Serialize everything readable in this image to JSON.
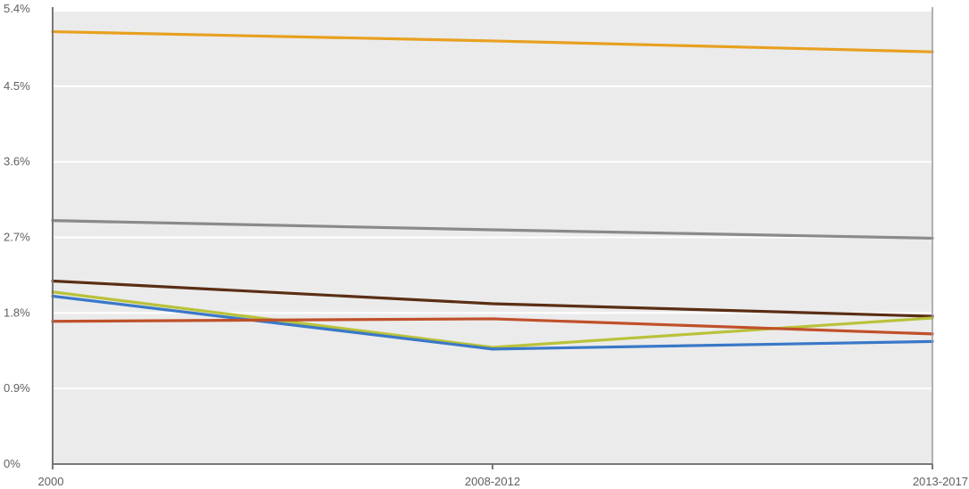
{
  "chart_data": {
    "type": "line",
    "title": "",
    "xlabel": "",
    "ylabel": "",
    "categories": [
      "2000",
      "2008-2012",
      "2013-2017"
    ],
    "ylim": [
      0,
      5.4
    ],
    "y_ticks": [
      "0%",
      "0.9%",
      "1.8%",
      "2.7%",
      "3.6%",
      "4.5%",
      "5.4%"
    ],
    "y_tick_values": [
      0,
      0.9,
      1.8,
      2.7,
      3.6,
      4.5,
      5.4
    ],
    "grid": true,
    "legend": "none",
    "series": [
      {
        "color": "#e8a020",
        "values": [
          5.15,
          5.04,
          4.91
        ]
      },
      {
        "color": "#8a8a8a",
        "values": [
          2.9,
          2.79,
          2.69
        ]
      },
      {
        "color": "#5a2e14",
        "values": [
          2.18,
          1.91,
          1.76
        ]
      },
      {
        "color": "#b9c23a",
        "values": [
          2.05,
          1.39,
          1.74
        ]
      },
      {
        "color": "#3a78c8",
        "values": [
          2.0,
          1.37,
          1.46
        ]
      },
      {
        "color": "#c0502a",
        "values": [
          1.7,
          1.73,
          1.55
        ]
      }
    ]
  }
}
